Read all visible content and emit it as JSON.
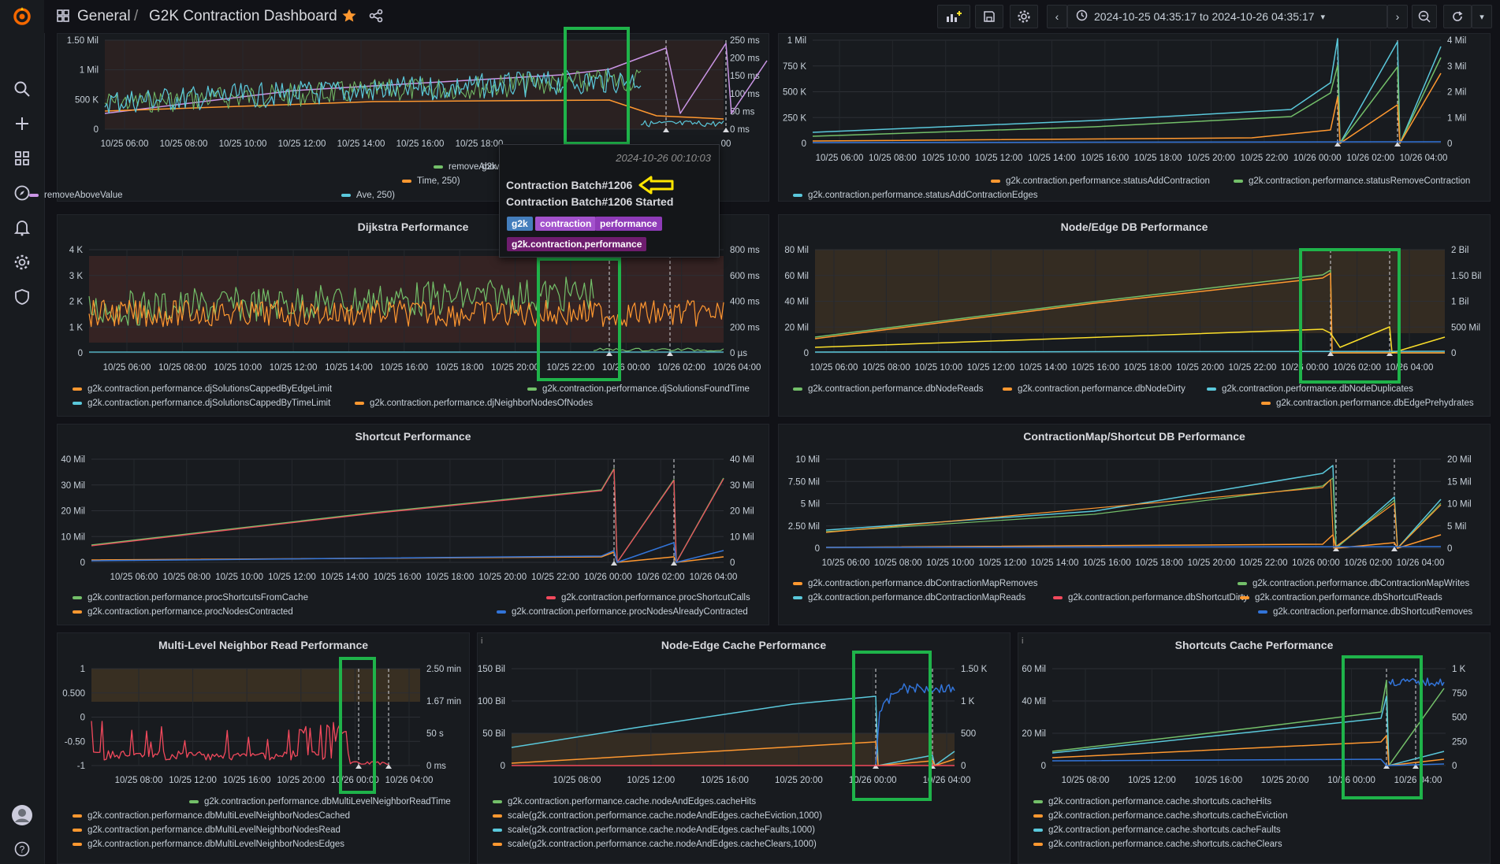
{
  "topbar": {
    "crumb_root": "General",
    "separator": "/",
    "dashboard_title": "G2K Contraction Dashboard",
    "time_range": "2024-10-25 04:35:17 to 2024-10-26 04:35:17"
  },
  "tooltip": {
    "time": "2024-10-26 00:10:03",
    "title": "Contraction Batch#1206",
    "text": "Contraction Batch#1206 Started",
    "tags": [
      "g2k",
      "contraction",
      "performance",
      "g2k.contraction.performance"
    ]
  },
  "colors": {
    "green": "#73bf69",
    "orange": "#ff9830",
    "yellow": "#fade2a",
    "cyan": "#5ac8db",
    "purple": "#ca95e5",
    "red": "#f2495c",
    "blue": "#3274d9",
    "highlight": "#1fb34a"
  },
  "panels": {
    "p1": {
      "title": "",
      "y_left": [
        "1.50 Mil",
        "1 Mil",
        "500 K",
        "0"
      ],
      "y_right": [
        "250 ms",
        "200 ms",
        "150 ms",
        "100 ms",
        "50 ms",
        "0 ms"
      ],
      "x": [
        "10/25 06:00",
        "10/25 08:00",
        "10/25 10:00",
        "10/25 12:00",
        "10/25 14:00",
        "10/25 16:00",
        "10/25 18:00"
      ],
      "x_partial": "00",
      "legend": [
        "removeAboveV",
        "Time, 250)",
        "removeAboveValue",
        "Ave, 250)",
        "g2k.contraction.performance.procNodesProcessed",
        "removeAboveValue(movingAverag",
        "me,7), 250)"
      ]
    },
    "p2": {
      "title": "",
      "y_left": [
        "1 Mil",
        "750 K",
        "500 K",
        "250 K",
        "0"
      ],
      "y_right": [
        "4 Mil",
        "3 Mil",
        "2 Mil",
        "1 Mil",
        "0"
      ],
      "x": [
        "10/25 06:00",
        "10/25 08:00",
        "10/25 10:00",
        "10/25 12:00",
        "10/25 14:00",
        "10/25 16:00",
        "10/25 18:00",
        "10/25 20:00",
        "10/25 22:00",
        "10/26 00:00",
        "10/26 02:00",
        "10/26 04:00"
      ],
      "legend": [
        "g2k.contraction.performance.statusAddContraction",
        "g2k.contraction.performance.statusRemoveContraction",
        "g2k.contraction.performance.statusAddContractionEdges"
      ]
    },
    "p3": {
      "title": "Dijkstra Performance",
      "y_left": [
        "4 K",
        "3 K",
        "2 K",
        "1 K",
        "0"
      ],
      "y_right": [
        "800 ms",
        "600 ms",
        "400 ms",
        "200 ms",
        "0 µs"
      ],
      "x": [
        "10/25 06:00",
        "10/25 08:00",
        "10/25 10:00",
        "10/25 12:00",
        "10/25 14:00",
        "10/25 16:00",
        "10/25 18:00",
        "10/25 20:00",
        "10/25 22:00",
        "10/26 00:00",
        "10/26 02:00",
        "10/26 04:00"
      ],
      "legend": [
        "g2k.contraction.performance.djSolutionsCappedByEdgeLimit",
        "g2k.contraction.performance.djSolutionsFoundTime",
        "g2k.contraction.performance.djSolutionsCappedByTimeLimit",
        "g2k.contraction.performance.djNeighborNodesOfNodes"
      ]
    },
    "p4": {
      "title": "Node/Edge DB Performance",
      "y_left": [
        "80 Mil",
        "60 Mil",
        "40 Mil",
        "20 Mil",
        "0"
      ],
      "y_right": [
        "2 Bil",
        "1.50 Bil",
        "1 Bil",
        "500 Mil",
        "0"
      ],
      "x": [
        "10/25 06:00",
        "10/25 08:00",
        "10/25 10:00",
        "10/25 12:00",
        "10/25 14:00",
        "10/25 16:00",
        "10/25 18:00",
        "10/25 20:00",
        "10/25 22:00",
        "10/26 00:00",
        "10/26 02:00",
        "10/26 04:00"
      ],
      "legend": [
        "g2k.contraction.performance.dbNodeReads",
        "g2k.contraction.performance.dbNodeDirty",
        "g2k.contraction.performance.dbNodeDuplicates",
        "g2k.contraction.performance.dbEdgePrehydrates"
      ]
    },
    "p5": {
      "title": "Shortcut Performance",
      "y_left": [
        "40 Mil",
        "30 Mil",
        "20 Mil",
        "10 Mil",
        "0"
      ],
      "y_right": [
        "40 Mil",
        "30 Mil",
        "20 Mil",
        "10 Mil",
        "0"
      ],
      "x": [
        "10/25 06:00",
        "10/25 08:00",
        "10/25 10:00",
        "10/25 12:00",
        "10/25 14:00",
        "10/25 16:00",
        "10/25 18:00",
        "10/25 20:00",
        "10/25 22:00",
        "10/26 00:00",
        "10/26 02:00",
        "10/26 04:00"
      ],
      "legend": [
        "g2k.contraction.performance.procShortcutsFromCache",
        "g2k.contraction.performance.procShortcutCalls",
        "g2k.contraction.performance.procNodesContracted",
        "g2k.contraction.performance.procNodesAlreadyContracted"
      ]
    },
    "p6": {
      "title": "ContractionMap/Shortcut DB Performance",
      "y_left": [
        "10 Mil",
        "7.50 Mil",
        "5 Mil",
        "2.50 Mil",
        "0"
      ],
      "y_right": [
        "20 Mil",
        "15 Mil",
        "10 Mil",
        "5 Mil",
        "0"
      ],
      "x": [
        "10/25 06:00",
        "10/25 08:00",
        "10/25 10:00",
        "10/25 12:00",
        "10/25 14:00",
        "10/25 16:00",
        "10/25 18:00",
        "10/25 20:00",
        "10/25 22:00",
        "10/26 00:00",
        "10/26 02:00",
        "10/26 04:00"
      ],
      "legend": [
        "g2k.contraction.performance.dbContractionMapRemoves",
        "g2k.contraction.performance.dbContractionMapWrites",
        "g2k.contraction.performance.dbContractionMapReads",
        "g2k.contraction.performance.dbShortcutDirty",
        "g2k.contraction.performance.dbShortcutReads",
        "g2k.contraction.performance.dbShortcutRemoves"
      ]
    },
    "p7": {
      "title": "Multi-Level Neighbor Read Performance",
      "y_left": [
        "1",
        "0.500",
        "0",
        "-0.50",
        "-1"
      ],
      "y_right": [
        "2.50 min",
        "1.67 min",
        "50 s",
        "0 ms"
      ],
      "x": [
        "10/25 08:00",
        "10/25 12:00",
        "10/25 16:00",
        "10/25 20:00",
        "10/26 00:00",
        "10/26 04:00"
      ],
      "legend": [
        "g2k.contraction.performance.dbMultiLevelNeighborReadTime",
        "g2k.contraction.performance.dbMultiLevelNeighborNodesCached",
        "g2k.contraction.performance.dbMultiLevelNeighborNodesRead",
        "g2k.contraction.performance.dbMultiLevelNeighborNodesEdges"
      ]
    },
    "p8": {
      "title": "Node-Edge Cache Performance",
      "y_left": [
        "150 Bil",
        "100 Bil",
        "50 Bil",
        "0"
      ],
      "y_right": [
        "1.50 K",
        "1 K",
        "500",
        "0"
      ],
      "x": [
        "10/25 08:00",
        "10/25 12:00",
        "10/25 16:00",
        "10/25 20:00",
        "10/26 00:00",
        "10/26 04:00"
      ],
      "legend": [
        "g2k.contraction.performance.cache.nodeAndEdges.cacheHits",
        "scale(g2k.contraction.performance.cache.nodeAndEdges.cacheEviction,1000)",
        "scale(g2k.contraction.performance.cache.nodeAndEdges.cacheFaults,1000)",
        "scale(g2k.contraction.performance.cache.nodeAndEdges.cacheClears,1000)"
      ]
    },
    "p9": {
      "title": "Shortcuts Cache Performance",
      "y_left": [
        "60 Mil",
        "40 Mil",
        "20 Mil",
        "0"
      ],
      "y_right": [
        "1 K",
        "750",
        "500",
        "250",
        "0"
      ],
      "x": [
        "10/25 08:00",
        "10/25 12:00",
        "10/25 16:00",
        "10/25 20:00",
        "10/26 00:00",
        "10/26 04:00"
      ],
      "legend": [
        "g2k.contraction.performance.cache.shortcuts.cacheHits",
        "g2k.contraction.performance.cache.shortcuts.cacheEviction",
        "g2k.contraction.performance.cache.shortcuts.cacheFaults",
        "g2k.contraction.performance.cache.shortcuts.cacheClears"
      ]
    }
  }
}
